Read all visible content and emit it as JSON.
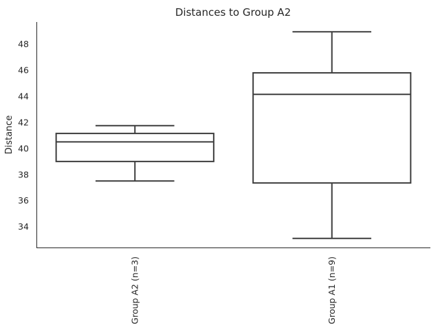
{
  "chart_data": {
    "type": "box",
    "title": "Distances to Group A2",
    "xlabel": "",
    "ylabel": "Distance",
    "ylim": [
      32.4,
      49.7
    ],
    "yticks": [
      34,
      36,
      38,
      40,
      42,
      44,
      46,
      48
    ],
    "grid": false,
    "categories": [
      "Group A2 (n=3)",
      "Group A1 (n=9)"
    ],
    "boxes": [
      {
        "category": "Group A2 (n=3)",
        "whisker_low": 37.5,
        "q1": 39.0,
        "median": 40.5,
        "q3": 41.15,
        "whisker_high": 41.75
      },
      {
        "category": "Group A1 (n=9)",
        "whisker_low": 33.1,
        "q1": 37.35,
        "median": 44.15,
        "q3": 45.8,
        "whisker_high": 48.95
      }
    ],
    "colors": {
      "box_stroke": "#3d3d3d",
      "box_fill": "#ffffff",
      "axis": "#262626"
    }
  }
}
